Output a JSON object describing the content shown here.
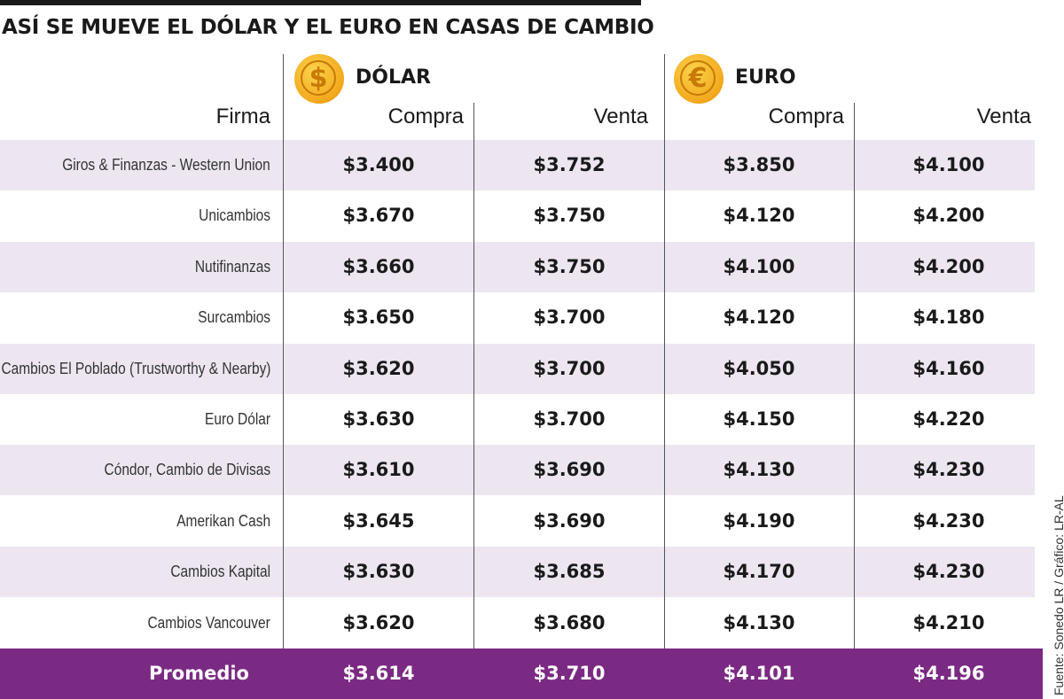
{
  "title": "ASÍ SE MUEVE EL DÓLAR Y EL EURO EN CASAS DE CAMBIO",
  "currencies": {
    "dolar": {
      "label": "DÓLAR",
      "symbol": "$",
      "icon": "dollar-coin-icon"
    },
    "euro": {
      "label": "EURO",
      "symbol": "€",
      "icon": "euro-coin-icon"
    }
  },
  "headers": {
    "firma": "Firma",
    "compra": "Compra",
    "venta": "Venta"
  },
  "colors": {
    "shade": "#ede6f1",
    "average_bg": "#7b2a83",
    "coin": "#f3a81c"
  },
  "chart_data": {
    "type": "table",
    "title": "ASÍ SE MUEVE EL DÓLAR Y EL EURO EN CASAS DE CAMBIO",
    "columns": [
      "Firma",
      "DÓLAR Compra",
      "DÓLAR Venta",
      "EURO Compra",
      "EURO Venta"
    ],
    "rows": [
      [
        "Giros & Finanzas - Western Union",
        "$3.400",
        "$3.752",
        "$3.850",
        "$4.100"
      ],
      [
        "Unicambios",
        "$3.670",
        "$3.750",
        "$4.120",
        "$4.200"
      ],
      [
        "Nutifinanzas",
        "$3.660",
        "$3.750",
        "$4.100",
        "$4.200"
      ],
      [
        "Surcambios",
        "$3.650",
        "$3.700",
        "$4.120",
        "$4.180"
      ],
      [
        "Cambios El Poblado (Trustworthy & Nearby)",
        "$3.620",
        "$3.700",
        "$4.050",
        "$4.160"
      ],
      [
        "Euro Dólar",
        "$3.630",
        "$3.700",
        "$4.150",
        "$4.220"
      ],
      [
        "Cóndor, Cambio de Divisas",
        "$3.610",
        "$3.690",
        "$4.130",
        "$4.230"
      ],
      [
        "Amerikan Cash",
        "$3.645",
        "$3.690",
        "$4.190",
        "$4.230"
      ],
      [
        "Cambios Kapital",
        "$3.630",
        "$3.685",
        "$4.170",
        "$4.230"
      ],
      [
        "Cambios Vancouver",
        "$3.620",
        "$3.680",
        "$4.130",
        "$4.210"
      ]
    ],
    "average": [
      "Promedio",
      "$3.614",
      "$3.710",
      "$4.101",
      "$4.196"
    ]
  },
  "source": "Fuente: Sonedo LR / Gráfico: LR-AL"
}
